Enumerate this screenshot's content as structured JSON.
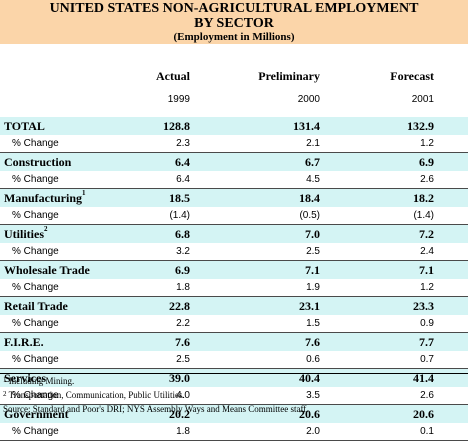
{
  "title": {
    "line1": "UNITED STATES NON-AGRICULTURAL EMPLOYMENT",
    "line2": "BY SECTOR",
    "line3": "(Employment in Millions)"
  },
  "columns": [
    {
      "header": "Actual",
      "year": "1999"
    },
    {
      "header": "Preliminary",
      "year": "2000"
    },
    {
      "header": "Forecast",
      "year": "2001"
    }
  ],
  "rows": [
    {
      "label": "TOTAL",
      "sup": "",
      "values": [
        "128.8",
        "131.4",
        "132.9"
      ],
      "pct_label": "% Change",
      "pct": [
        "2.3",
        "2.1",
        "1.2"
      ]
    },
    {
      "label": "Construction",
      "sup": "",
      "values": [
        "6.4",
        "6.7",
        "6.9"
      ],
      "pct_label": "% Change",
      "pct": [
        "6.4",
        "4.5",
        "2.6"
      ]
    },
    {
      "label": "Manufacturing",
      "sup": "1",
      "values": [
        "18.5",
        "18.4",
        "18.2"
      ],
      "pct_label": "% Change",
      "pct": [
        "(1.4)",
        "(0.5)",
        "(1.4)"
      ]
    },
    {
      "label": "Utilities",
      "sup": "2",
      "values": [
        "6.8",
        "7.0",
        "7.2"
      ],
      "pct_label": "% Change",
      "pct": [
        "3.2",
        "2.5",
        "2.4"
      ]
    },
    {
      "label": "Wholesale Trade",
      "sup": "",
      "values": [
        "6.9",
        "7.1",
        "7.1"
      ],
      "pct_label": "% Change",
      "pct": [
        "1.8",
        "1.9",
        "1.2"
      ]
    },
    {
      "label": "Retail Trade",
      "sup": "",
      "values": [
        "22.8",
        "23.1",
        "23.3"
      ],
      "pct_label": "% Change",
      "pct": [
        "2.2",
        "1.5",
        "0.9"
      ]
    },
    {
      "label": "F.I.R.E.",
      "sup": "",
      "values": [
        "7.6",
        "7.6",
        "7.7"
      ],
      "pct_label": "% Change",
      "pct": [
        "2.5",
        "0.6",
        "0.7"
      ]
    },
    {
      "label": "Services",
      "sup": "",
      "values": [
        "39.0",
        "40.4",
        "41.4"
      ],
      "pct_label": "% Change",
      "pct": [
        "4.0",
        "3.5",
        "2.6"
      ]
    },
    {
      "label": "Government",
      "sup": "",
      "values": [
        "20.2",
        "20.6",
        "20.6"
      ],
      "pct_label": "% Change",
      "pct": [
        "1.8",
        "2.0",
        "0.1"
      ]
    }
  ],
  "footnotes": [
    {
      "sup": "1",
      "text": "Including Mining."
    },
    {
      "sup": "2",
      "text": "Transportation, Communication, Public Utilities."
    },
    {
      "sup": "",
      "text": "Source: Standard and Poor's DRI; NYS Assembly Ways and Means Committee staff."
    }
  ],
  "colors": {
    "title_band": "#fbd5a9",
    "row_band": "#d4f4f4"
  }
}
